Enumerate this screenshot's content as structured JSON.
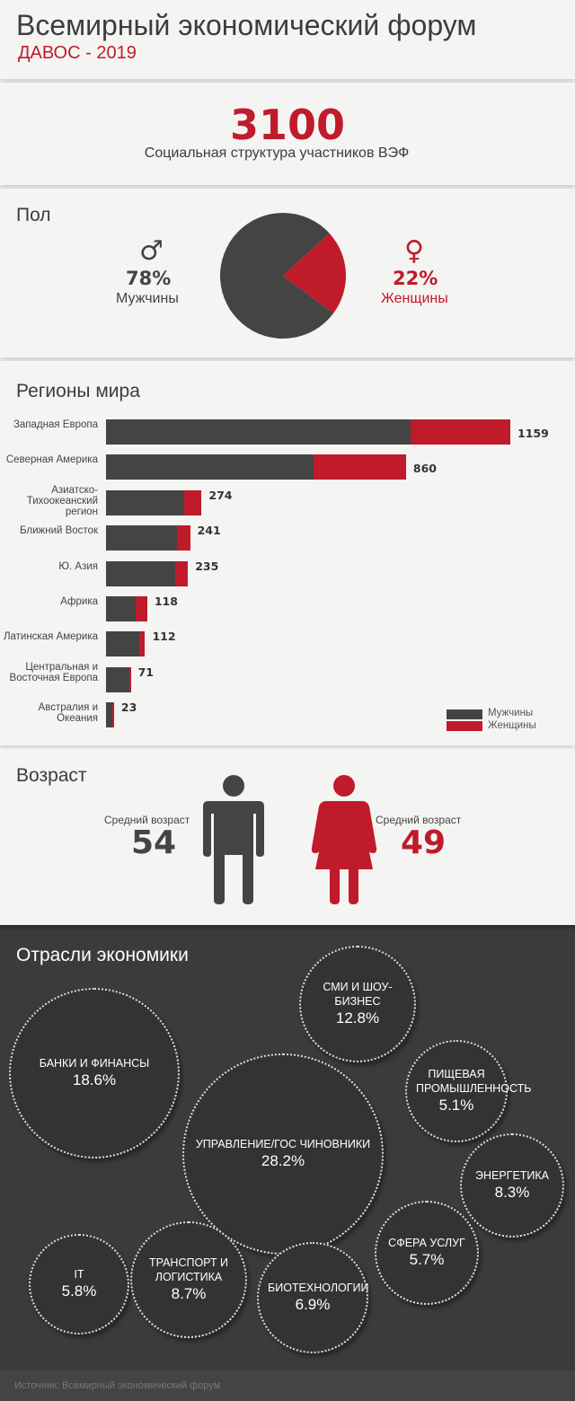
{
  "header": {
    "title": "Всемирный экономический форум",
    "subtitle": "ДАВОС - 2019"
  },
  "total": {
    "value": "3100",
    "caption": "Социальная структура участников ВЭФ"
  },
  "colors": {
    "men": "#444444",
    "women": "#c01b2a",
    "dark_bg": "#3b3b3b",
    "bubble": "#333333"
  },
  "gender": {
    "title": "Пол",
    "men_symbol": "♂",
    "men_pct": "78%",
    "men_label": "Мужчины",
    "women_symbol": "♀",
    "women_pct": "22%",
    "women_label": "Женщины"
  },
  "age": {
    "title": "Возраст",
    "men_caption": "Средний возраст",
    "men_value": "54",
    "women_caption": "Средний возраст",
    "women_value": "49"
  },
  "industries": {
    "title": "Отрасли экономики",
    "source": "Источник: Всемирный экономический форум"
  },
  "chart_data": [
    {
      "type": "pie",
      "title": "Пол",
      "slices": [
        {
          "name": "Мужчины",
          "value": 78
        },
        {
          "name": "Женщины",
          "value": 22
        }
      ]
    },
    {
      "type": "bar",
      "stacked": true,
      "orientation": "horizontal",
      "title": "Регионы мира",
      "legend": "bottom-right",
      "categories": [
        "Западная Европа",
        "Северная Америка",
        "Азиатско-Тихоокеанский регион",
        "Ближний Восток",
        "Ю. Азия",
        "Африка",
        "Латинская Америка",
        "Центральная и Восточная Европа",
        "Австралия и Океания"
      ],
      "totals": [
        "1159",
        "860",
        "274",
        "241",
        "235",
        "118",
        "112",
        "71",
        "23"
      ],
      "series": [
        {
          "name": "Мужчины",
          "values": [
            873,
            595,
            224,
            204,
            198,
            85,
            95,
            67,
            17
          ]
        },
        {
          "name": "Женщины",
          "values": [
            286,
            265,
            50,
            37,
            37,
            33,
            17,
            4,
            6
          ]
        }
      ]
    },
    {
      "type": "bubble",
      "title": "Отрасли экономики",
      "items": [
        {
          "name": "СМИ И ШОУ-БИЗНЕС",
          "value": "12.8%"
        },
        {
          "name": "БАНКИ И ФИНАНСЫ",
          "value": "18.6%"
        },
        {
          "name": "ПИЩЕВАЯ ПРОМЫШЛЕННОСТЬ",
          "value": "5.1%"
        },
        {
          "name": "УПРАВЛЕНИЕ/ГОС ЧИНОВНИКИ",
          "value": "28.2%"
        },
        {
          "name": "ЭНЕРГЕТИКА",
          "value": "8.3%"
        },
        {
          "name": "IT",
          "value": "5.8%"
        },
        {
          "name": "СФЕРА УСЛУГ",
          "value": "5.7%"
        },
        {
          "name": "ТРАНСПОРТ И ЛОГИСТИКА",
          "value": "8.7%"
        },
        {
          "name": "БИОТЕХНОЛОГИИ",
          "value": "6.9%"
        }
      ]
    }
  ]
}
